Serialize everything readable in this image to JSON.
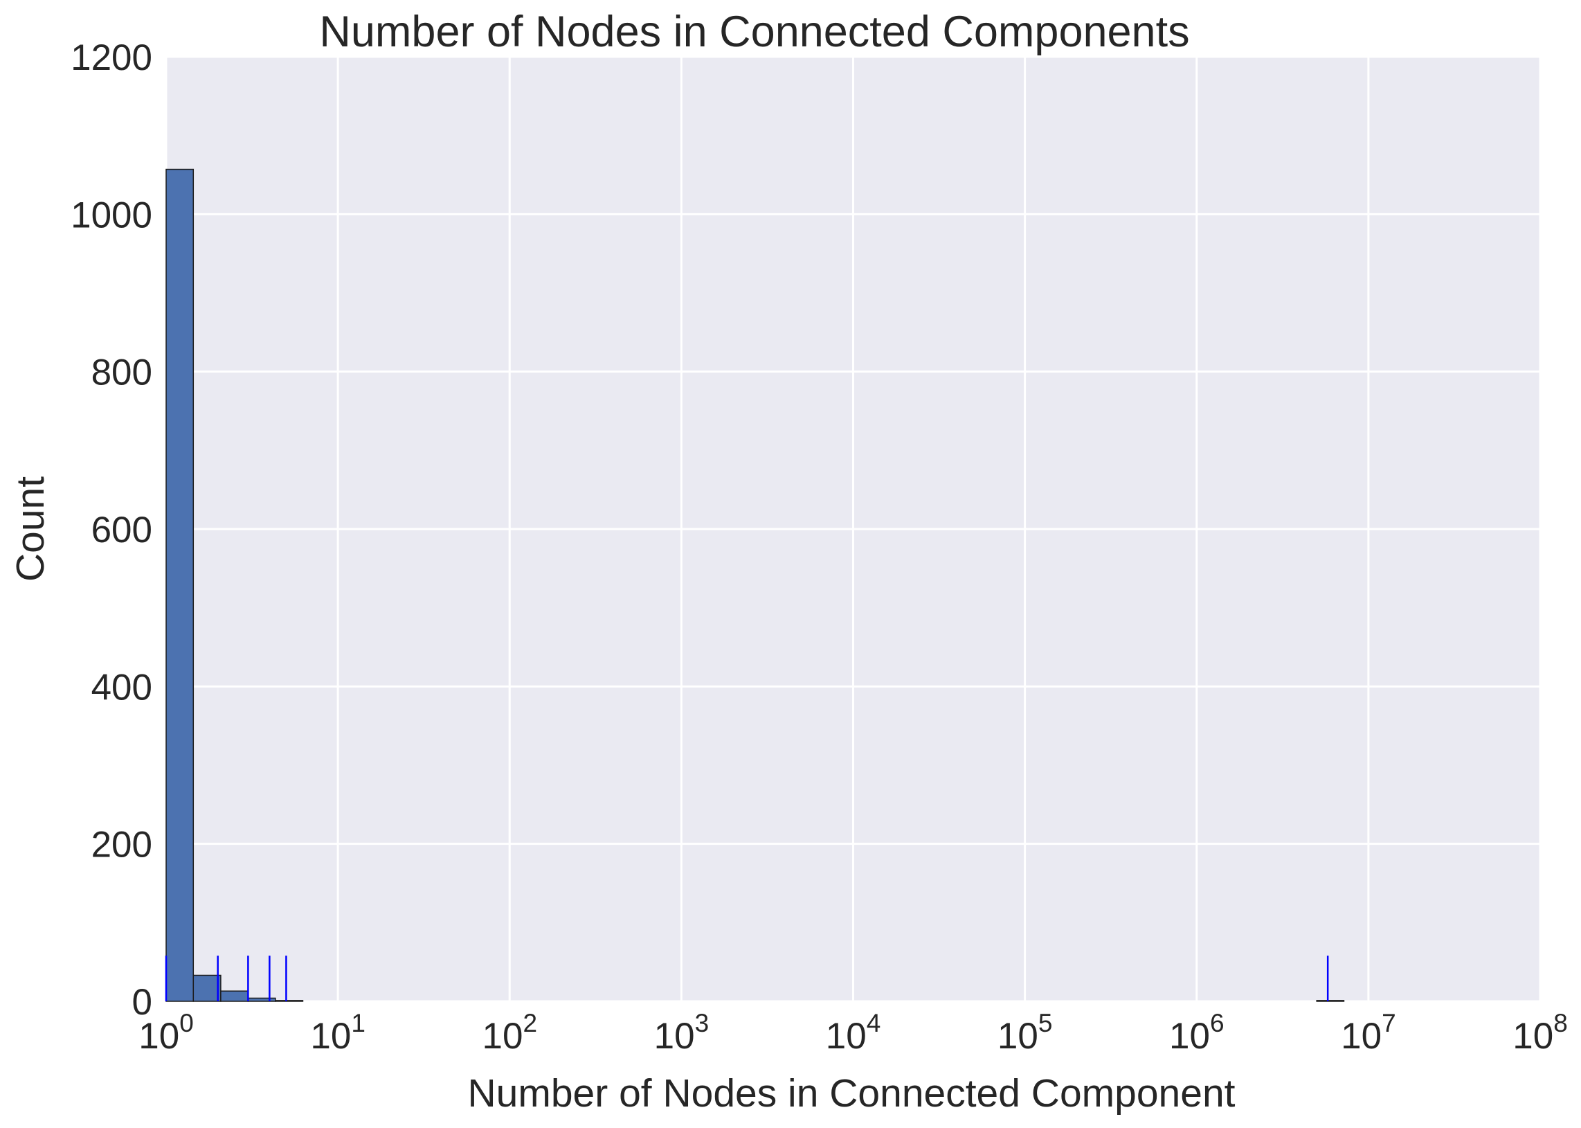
{
  "chart_data": {
    "type": "bar",
    "title": "Number of Nodes in Connected Components",
    "xlabel": "Number of Nodes in Connected Component",
    "ylabel": "Count",
    "x_scale": "log",
    "xlim": [
      1,
      100000000
    ],
    "ylim": [
      0,
      1200
    ],
    "grid": true,
    "x_ticks": [
      {
        "base": "10",
        "exp": "0",
        "value": 1
      },
      {
        "base": "10",
        "exp": "1",
        "value": 10
      },
      {
        "base": "10",
        "exp": "2",
        "value": 100
      },
      {
        "base": "10",
        "exp": "3",
        "value": 1000
      },
      {
        "base": "10",
        "exp": "4",
        "value": 10000
      },
      {
        "base": "10",
        "exp": "5",
        "value": 100000
      },
      {
        "base": "10",
        "exp": "6",
        "value": 1000000
      },
      {
        "base": "10",
        "exp": "7",
        "value": 10000000
      },
      {
        "base": "10",
        "exp": "8",
        "value": 100000000
      }
    ],
    "y_ticks": [
      "0",
      "200",
      "400",
      "600",
      "800",
      "1000",
      "1200"
    ],
    "bins": [
      {
        "x0": 1.0,
        "x1": 1.44,
        "count": 1057
      },
      {
        "x0": 1.44,
        "x1": 2.08,
        "count": 33
      },
      {
        "x0": 2.08,
        "x1": 3.0,
        "count": 13
      },
      {
        "x0": 3.0,
        "x1": 4.33,
        "count": 4
      },
      {
        "x0": 4.33,
        "x1": 6.25,
        "count": 1
      },
      {
        "x0": 5000000,
        "x1": 7200000,
        "count": 1
      }
    ],
    "rug": [
      1,
      2,
      3,
      4,
      5,
      5800000
    ],
    "colors": {
      "background": "#eaeaf2",
      "grid": "#ffffff",
      "bar_fill": "#4c72b0",
      "bar_edge": "#1c1c1c",
      "rug": "#0000ff",
      "text": "#262626"
    }
  }
}
